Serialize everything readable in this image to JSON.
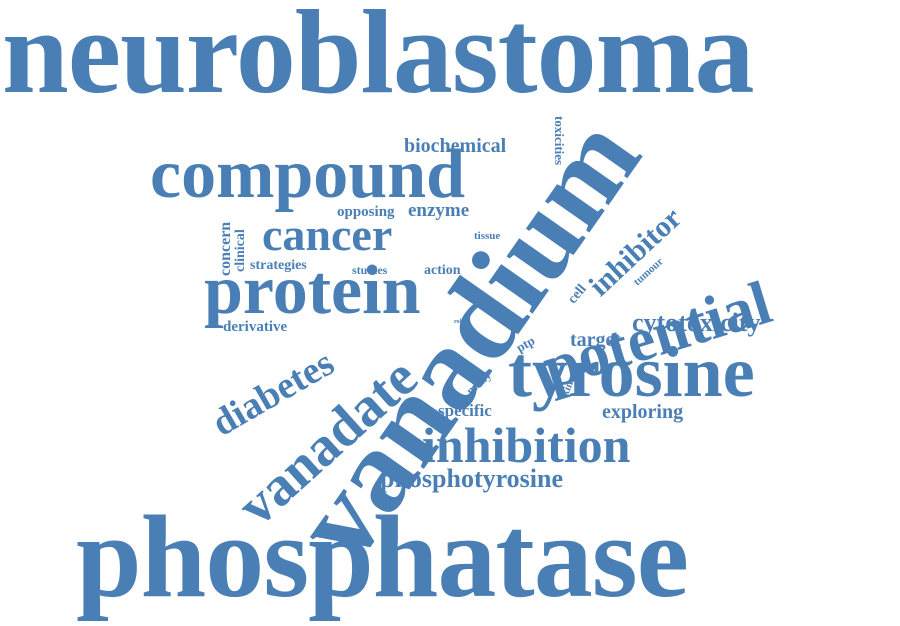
{
  "colors": {
    "word": "#4a7fb5",
    "background": "#ffffff"
  },
  "words": {
    "neuroblastoma": "neuroblastoma",
    "phosphatase": "phosphatase",
    "vanadium": "vanadium",
    "compound": "compound",
    "tyrosine": "tyrosine",
    "protein": "protein",
    "potential": "potential",
    "inhibition": "inhibition",
    "vanadate": "vanadate",
    "cancer": "cancer",
    "diabetes": "diabetes",
    "inhibitor": "inhibitor",
    "phosphotyrosine": "phosphotyrosine",
    "cytotoxicity": "cytotoxicity",
    "biochemical": "biochemical",
    "enzyme": "enzyme",
    "opposing": "opposing",
    "target": "target",
    "exploring": "exploring",
    "specific": "specific",
    "derivative": "derivative",
    "strategies": "strategies",
    "studies": "studies",
    "action": "action",
    "clinical": "clinical",
    "concern": "concern",
    "toxicities": "toxicities",
    "tissue": "tissue",
    "tumour": "tumour",
    "cell": "cell",
    "ptp": "ptp",
    "many": "many",
    "kinase": "kinase",
    "trial": "trial",
    "harm": "harm",
    "role": "role"
  }
}
